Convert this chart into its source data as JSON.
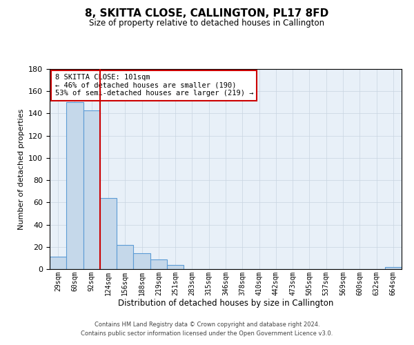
{
  "title": "8, SKITTA CLOSE, CALLINGTON, PL17 8FD",
  "subtitle": "Size of property relative to detached houses in Callington",
  "xlabel": "Distribution of detached houses by size in Callington",
  "ylabel": "Number of detached properties",
  "categories": [
    "29sqm",
    "60sqm",
    "92sqm",
    "124sqm",
    "156sqm",
    "188sqm",
    "219sqm",
    "251sqm",
    "283sqm",
    "315sqm",
    "346sqm",
    "378sqm",
    "410sqm",
    "442sqm",
    "473sqm",
    "505sqm",
    "537sqm",
    "569sqm",
    "600sqm",
    "632sqm",
    "664sqm"
  ],
  "values": [
    11,
    150,
    143,
    64,
    22,
    14,
    9,
    4,
    0,
    0,
    0,
    0,
    0,
    0,
    0,
    0,
    0,
    0,
    0,
    0,
    2
  ],
  "bar_color": "#c5d8ea",
  "bar_edge_color": "#5b9bd5",
  "vline_color": "#cc0000",
  "ylim": [
    0,
    180
  ],
  "yticks": [
    0,
    20,
    40,
    60,
    80,
    100,
    120,
    140,
    160,
    180
  ],
  "annotation_title": "8 SKITTA CLOSE: 101sqm",
  "annotation_line1": "← 46% of detached houses are smaller (190)",
  "annotation_line2": "53% of semi-detached houses are larger (219) →",
  "annotation_box_color": "#ffffff",
  "annotation_box_edge": "#cc0000",
  "footer_line1": "Contains HM Land Registry data © Crown copyright and database right 2024.",
  "footer_line2": "Contains public sector information licensed under the Open Government Licence v3.0.",
  "background_color": "#ffffff",
  "axes_bg_color": "#e8f0f8",
  "grid_color": "#c8d4e0"
}
